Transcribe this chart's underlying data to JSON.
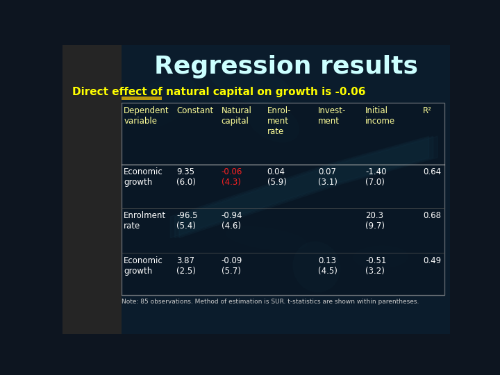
{
  "title": "Regression results",
  "subtitle": "Direct effect of natural capital on growth is -0.06",
  "title_color": "#ccffff",
  "subtitle_color": "#ffff00",
  "note": "Note: 85 observations. Method of estimation is SUR. t-statistics are shown within parentheses.",
  "col_headers": [
    "Dependent\nvariable",
    "Constant",
    "Natural\ncapital",
    "Enrol-\nment\nrate",
    "Invest-\nment",
    "Initial\nincome",
    "R²"
  ],
  "rows": [
    {
      "label": "Economic\ngrowth",
      "constant": "9.35\n(6.0)",
      "natural_capital": "-0.06\n(4.3)",
      "natural_capital_red": true,
      "enrolment": "0.04\n(5.9)",
      "investment": "0.07\n(3.1)",
      "initial_income": "-1.40\n(7.0)",
      "r2": "0.64"
    },
    {
      "label": "Enrolment\nrate",
      "constant": "-96.5\n(5.4)",
      "natural_capital": "-0.94\n(4.6)",
      "natural_capital_red": false,
      "enrolment": "",
      "investment": "",
      "initial_income": "20.3\n(9.7)",
      "r2": "0.68"
    },
    {
      "label": "Economic\ngrowth",
      "constant": "3.87\n(2.5)",
      "natural_capital": "-0.09\n(5.7)",
      "natural_capital_red": false,
      "enrolment": "",
      "investment": "0.13\n(4.5)",
      "initial_income": "-0.51\n(3.2)",
      "r2": "0.49"
    }
  ],
  "table_text_color": "#ffff99",
  "highlight_bar_color": "#b8960a",
  "bg_left_color": "#2a2a2a",
  "bg_right_color": "#0a1e2e"
}
